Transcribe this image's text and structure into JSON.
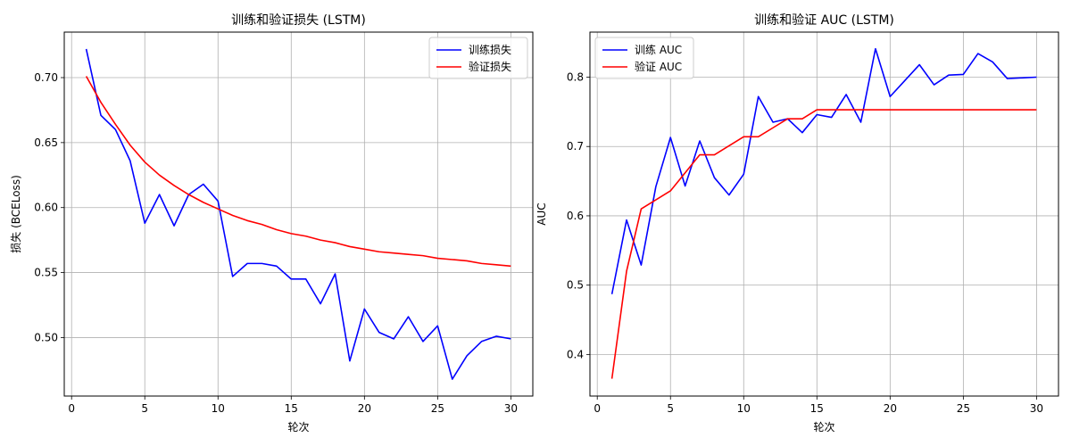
{
  "chart_data": [
    {
      "type": "line",
      "title": "训练和验证损失 (LSTM)",
      "xlabel": "轮次",
      "ylabel": "损失 (BCELoss)",
      "xlim": [
        -0.5,
        31.5
      ],
      "ylim": [
        0.455,
        0.735
      ],
      "xticks": [
        0,
        5,
        10,
        15,
        20,
        25,
        30
      ],
      "yticks": [
        0.5,
        0.55,
        0.6,
        0.65,
        0.7
      ],
      "ytick_labels": [
        "0.50",
        "0.55",
        "0.60",
        "0.65",
        "0.70"
      ],
      "grid": true,
      "legend": "top-right",
      "x": [
        1,
        2,
        3,
        4,
        5,
        6,
        7,
        8,
        9,
        10,
        11,
        12,
        13,
        14,
        15,
        16,
        17,
        18,
        19,
        20,
        21,
        22,
        23,
        24,
        25,
        26,
        27,
        28,
        29,
        30
      ],
      "series": [
        {
          "name": "训练损失",
          "color": "#0000ff",
          "values": [
            0.722,
            0.671,
            0.66,
            0.636,
            0.588,
            0.61,
            0.586,
            0.61,
            0.618,
            0.605,
            0.547,
            0.557,
            0.557,
            0.555,
            0.545,
            0.545,
            0.526,
            0.549,
            0.482,
            0.522,
            0.504,
            0.499,
            0.516,
            0.497,
            0.509,
            0.468,
            0.486,
            0.497,
            0.501,
            0.499
          ]
        },
        {
          "name": "验证损失",
          "color": "#ff0000",
          "values": [
            0.701,
            0.681,
            0.664,
            0.648,
            0.635,
            0.625,
            0.617,
            0.61,
            0.604,
            0.599,
            0.594,
            0.59,
            0.587,
            0.583,
            0.58,
            0.578,
            0.575,
            0.573,
            0.57,
            0.568,
            0.566,
            0.565,
            0.564,
            0.563,
            0.561,
            0.56,
            0.559,
            0.557,
            0.556,
            0.555
          ]
        }
      ]
    },
    {
      "type": "line",
      "title": "训练和验证 AUC (LSTM)",
      "xlabel": "轮次",
      "ylabel": "AUC",
      "xlim": [
        -0.5,
        31.5
      ],
      "ylim": [
        0.34,
        0.865
      ],
      "xticks": [
        0,
        5,
        10,
        15,
        20,
        25,
        30
      ],
      "yticks": [
        0.4,
        0.5,
        0.6,
        0.7,
        0.8
      ],
      "ytick_labels": [
        "0.4",
        "0.5",
        "0.6",
        "0.7",
        "0.8"
      ],
      "grid": true,
      "legend": "top-left",
      "x": [
        1,
        2,
        3,
        4,
        5,
        6,
        7,
        8,
        9,
        10,
        11,
        12,
        13,
        14,
        15,
        16,
        17,
        18,
        19,
        20,
        21,
        22,
        23,
        24,
        25,
        26,
        27,
        28,
        29,
        30
      ],
      "series": [
        {
          "name": "训练 AUC",
          "color": "#0000ff",
          "values": [
            0.487,
            0.594,
            0.529,
            0.642,
            0.713,
            0.643,
            0.708,
            0.655,
            0.63,
            0.66,
            0.772,
            0.735,
            0.74,
            0.72,
            0.746,
            0.742,
            0.775,
            0.735,
            0.841,
            0.772,
            0.795,
            0.818,
            0.789,
            0.803,
            0.804,
            0.834,
            0.822,
            0.798,
            0.799,
            0.8
          ]
        },
        {
          "name": "验证 AUC",
          "color": "#ff0000",
          "values": [
            0.365,
            0.52,
            0.61,
            0.623,
            0.636,
            0.662,
            0.688,
            0.688,
            0.701,
            0.714,
            0.714,
            0.727,
            0.74,
            0.74,
            0.753,
            0.753,
            0.753,
            0.753,
            0.753,
            0.753,
            0.753,
            0.753,
            0.753,
            0.753,
            0.753,
            0.753,
            0.753,
            0.753,
            0.753,
            0.753
          ]
        }
      ]
    }
  ]
}
